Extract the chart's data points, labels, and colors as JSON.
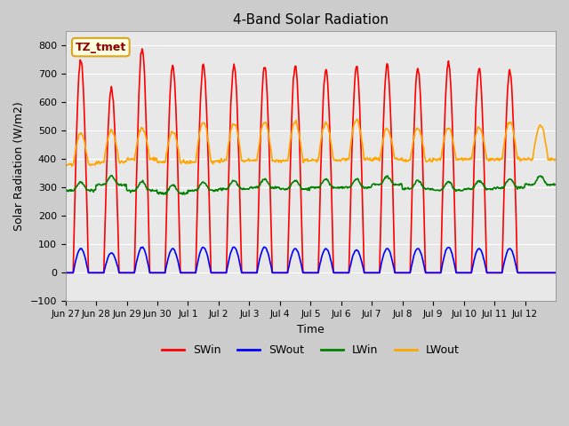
{
  "title": "4-Band Solar Radiation",
  "xlabel": "Time",
  "ylabel": "Solar Radiation (W/m2)",
  "ylim": [
    -100,
    850
  ],
  "yticks": [
    -100,
    0,
    100,
    200,
    300,
    400,
    500,
    600,
    700,
    800
  ],
  "legend_label": "TZ_tmet",
  "series_names": [
    "SWin",
    "SWout",
    "LWin",
    "LWout"
  ],
  "series_colors": [
    "red",
    "blue",
    "green",
    "orange"
  ],
  "fig_bg_color": "#cccccc",
  "plot_bg_color": "#e8e8e8",
  "n_days": 16,
  "xtick_labels": [
    "Jun 27",
    "Jun 28",
    "Jun 29",
    "Jun 30",
    "Jul 1",
    "Jul 2",
    "Jul 3",
    "Jul 4",
    "Jul 5",
    "Jul 6",
    "Jul 7",
    "Jul 8",
    "Jul 9",
    "Jul 10",
    "Jul 11",
    "Jul 12"
  ],
  "dt": 0.5,
  "SWin_peaks": [
    750,
    650,
    790,
    730,
    730,
    730,
    725,
    730,
    715,
    725,
    730,
    720,
    740,
    720,
    710,
    0
  ],
  "SWout_peaks": [
    85,
    70,
    90,
    85,
    90,
    90,
    90,
    85,
    85,
    80,
    85,
    85,
    90,
    85,
    85,
    0
  ],
  "LWin_base": [
    290,
    310,
    290,
    280,
    290,
    295,
    300,
    295,
    300,
    300,
    310,
    295,
    290,
    295,
    300,
    310
  ],
  "LWout_base": [
    380,
    390,
    400,
    390,
    390,
    395,
    395,
    395,
    395,
    400,
    400,
    395,
    400,
    400,
    400,
    400
  ],
  "LWout_peak": [
    490,
    500,
    510,
    495,
    530,
    525,
    530,
    530,
    525,
    540,
    505,
    510,
    510,
    510,
    530,
    520
  ]
}
